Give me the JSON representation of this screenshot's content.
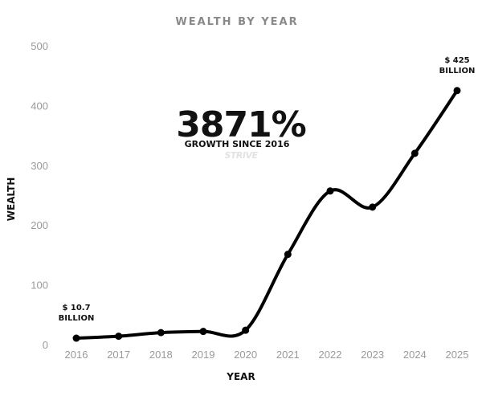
{
  "chart_data": {
    "type": "line",
    "title": "WEALTH BY YEAR",
    "xlabel": "YEAR",
    "ylabel": "WEALTH",
    "ylim": [
      0,
      500
    ],
    "yticks": [
      0,
      100,
      200,
      300,
      400,
      500
    ],
    "categories": [
      "2016",
      "2017",
      "2018",
      "2019",
      "2020",
      "2021",
      "2022",
      "2023",
      "2024",
      "2025"
    ],
    "series": [
      {
        "values": [
          10.7,
          14,
          20,
          22,
          24,
          151,
          257,
          230,
          320,
          425
        ]
      }
    ],
    "grid": false,
    "legend": "none",
    "line_color": "#000000",
    "headline": "3871%",
    "headline_sub": "GROWTH SINCE 2016",
    "watermark": "STRIVE",
    "annotations": [
      {
        "index": 0,
        "lines": [
          "$ 10.7",
          "BILLION"
        ]
      },
      {
        "index": 9,
        "lines": [
          "$ 425",
          "BILLION"
        ]
      }
    ]
  }
}
